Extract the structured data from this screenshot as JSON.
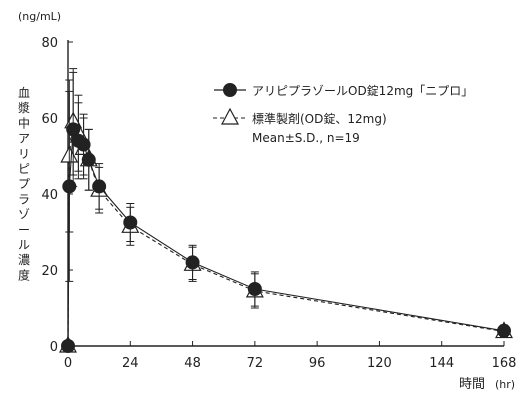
{
  "chart_data": {
    "type": "line",
    "ylabel": "血漿中アリピプラゾール濃度",
    "y_unit": "(ng/mL)",
    "xlabel": "時間",
    "x_unit": "(hr)",
    "xlim": [
      0,
      168
    ],
    "ylim": [
      0,
      80
    ],
    "x_ticks": [
      0,
      24,
      48,
      72,
      96,
      120,
      144,
      168
    ],
    "y_ticks": [
      0,
      20,
      40,
      60,
      80
    ],
    "legend_note": "Mean±S.D., n=19",
    "series": [
      {
        "name": "アリピプラゾールOD錠12mg「ニプロ」",
        "marker": "filled-circle",
        "line": "solid",
        "x": [
          0,
          0.5,
          2,
          4,
          6,
          8,
          12,
          24,
          48,
          72,
          168
        ],
        "y": [
          0,
          42,
          57,
          54,
          53,
          49,
          42,
          32.5,
          22,
          15,
          4
        ],
        "sd": [
          0,
          25,
          15,
          10,
          8,
          8,
          6,
          5,
          4.5,
          4.5,
          1.5
        ]
      },
      {
        "name": "標準製剤(OD錠、12mg)",
        "marker": "open-triangle",
        "line": "dashed",
        "x": [
          0,
          0.5,
          2,
          4,
          6,
          8,
          12,
          24,
          48,
          72,
          168
        ],
        "y": [
          0,
          50,
          59,
          56,
          52,
          49,
          41,
          31.5,
          21.5,
          14.5,
          3.8
        ],
        "sd": [
          0,
          20,
          14,
          10,
          8,
          8,
          6,
          5,
          4.5,
          4.5,
          1.5
        ]
      }
    ]
  }
}
